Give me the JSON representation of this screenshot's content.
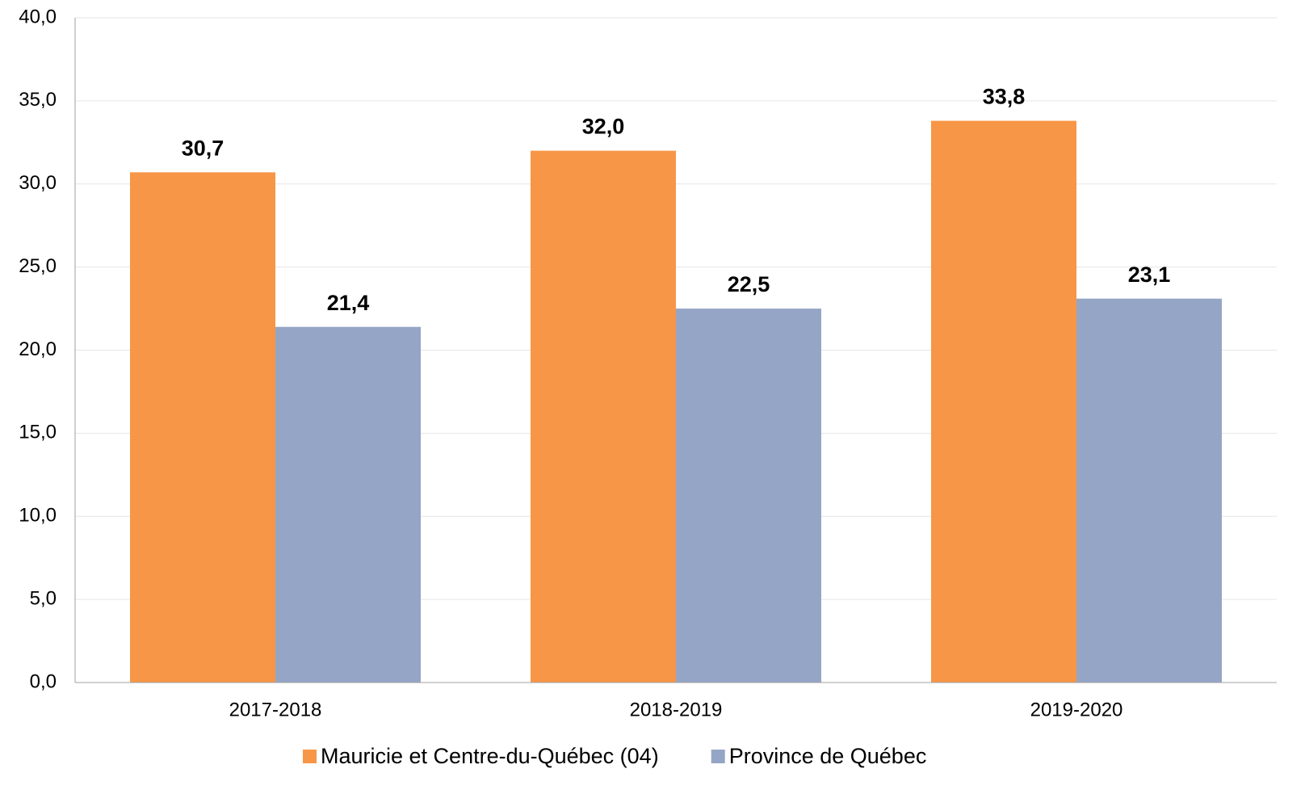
{
  "chart_data": {
    "type": "bar",
    "categories": [
      "2017-2018",
      "2018-2019",
      "2019-2020"
    ],
    "series": [
      {
        "name": "Mauricie et Centre-du-Québec (04)",
        "color": "#f79646",
        "values": [
          30.7,
          32.0,
          33.8
        ],
        "value_labels": [
          "30,7",
          "32,0",
          "33,8"
        ]
      },
      {
        "name": "Province de Québec",
        "color": "#95a5c6",
        "values": [
          21.4,
          22.5,
          23.1
        ],
        "value_labels": [
          "21,4",
          "22,5",
          "23,1"
        ]
      }
    ],
    "ylim": [
      0,
      40
    ],
    "yticks": [
      {
        "value": 0,
        "label": "0,0"
      },
      {
        "value": 5,
        "label": "5,0"
      },
      {
        "value": 10,
        "label": "10,0"
      },
      {
        "value": 15,
        "label": "15,0"
      },
      {
        "value": 20,
        "label": "20,0"
      },
      {
        "value": 25,
        "label": "25,0"
      },
      {
        "value": 30,
        "label": "30,0"
      },
      {
        "value": 35,
        "label": "35,0"
      },
      {
        "value": 40,
        "label": "40,0"
      }
    ],
    "grid": true,
    "legend": "bottom"
  }
}
